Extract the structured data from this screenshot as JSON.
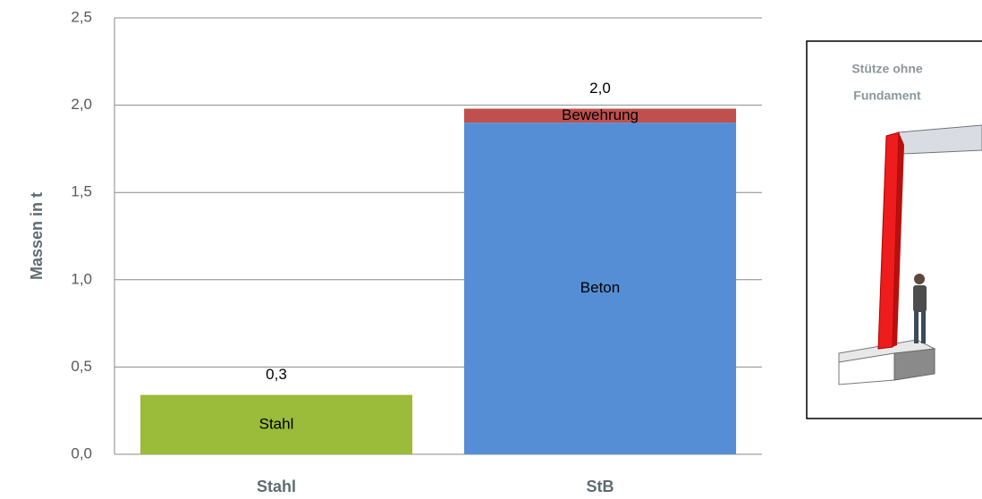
{
  "chart_data": {
    "type": "stacked_bar",
    "categories": [
      "Stahl",
      "StB"
    ],
    "series": [
      {
        "name": "Stahl",
        "color": "#9bbb3b",
        "values": [
          0.34,
          null
        ]
      },
      {
        "name": "Beton",
        "color": "#558ed5",
        "values": [
          null,
          1.9
        ]
      },
      {
        "name": "Bewehrung",
        "color": "#c0504d",
        "values": [
          null,
          0.08
        ]
      }
    ],
    "total_labels": [
      "0,3",
      "2,0"
    ],
    "y_label": "Massen in t",
    "ylim": [
      0,
      2.5
    ],
    "yticks": [
      {
        "value": 0,
        "label": "0,0"
      },
      {
        "value": 0.5,
        "label": "0,5"
      },
      {
        "value": 1,
        "label": "1,0"
      },
      {
        "value": 1.5,
        "label": "1,5"
      },
      {
        "value": 2,
        "label": "2,0"
      },
      {
        "value": 2.5,
        "label": "2,5"
      }
    ],
    "grid": true
  },
  "inset": {
    "title_lines": [
      "Stütze ohne",
      "Fundament"
    ]
  }
}
